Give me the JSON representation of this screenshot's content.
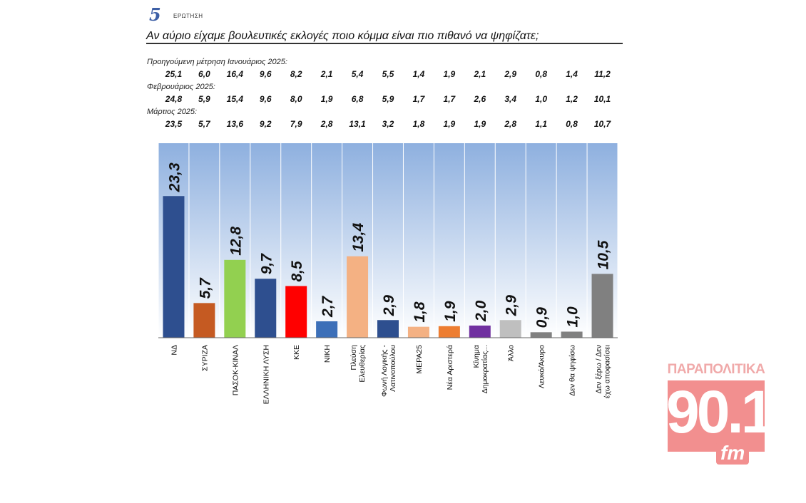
{
  "header": {
    "question_number": "5",
    "question_word": "ΕΡΩΤΗΣΗ",
    "question": "Αν αύριο είχαμε βουλευτικές εκλογές ποιο κόμμα είναι πιο πιθανό να ψηφίζατε;"
  },
  "previous": [
    {
      "label": "Προηγούμενη μέτρηση Ιανουάριος 2025:",
      "values": [
        "25,1",
        "6,0",
        "16,4",
        "9,6",
        "8,2",
        "2,1",
        "5,4",
        "5,5",
        "1,4",
        "1,9",
        "2,1",
        "2,9",
        "0,8",
        "1,4",
        "11,2"
      ]
    },
    {
      "label": "Φεβρουάριος 2025:",
      "values": [
        "24,8",
        "5,9",
        "15,4",
        "9,6",
        "8,0",
        "1,9",
        "6,8",
        "5,9",
        "1,7",
        "1,7",
        "2,6",
        "3,4",
        "1,0",
        "1,2",
        "10,1"
      ]
    },
    {
      "label": "Μάρτιος 2025:",
      "values": [
        "23,5",
        "5,7",
        "13,6",
        "9,2",
        "7,9",
        "2,8",
        "13,1",
        "3,2",
        "1,8",
        "1,9",
        "1,9",
        "2,8",
        "1,1",
        "0,8",
        "10,7"
      ]
    }
  ],
  "chart_data": {
    "type": "bar",
    "title": "",
    "xlabel": "",
    "ylabel": "",
    "ylim": [
      0,
      32
    ],
    "grid": false,
    "background_gradient": [
      "#ffffff",
      "#8eb0df"
    ],
    "categories": [
      [
        "ΝΔ"
      ],
      [
        "ΣΥΡΙΖΑ"
      ],
      [
        "ΠΑΣΟΚ-ΚΙΝΑΛ"
      ],
      [
        "ΕΛΛΗΝΙΚΗ ΛΥΣΗ"
      ],
      [
        "ΚΚΕ"
      ],
      [
        "ΝΙΚΗ"
      ],
      [
        "Πλεύση",
        "Ελευθερίας"
      ],
      [
        "Φωνή Λογικής -",
        "Λατινοπούλου"
      ],
      [
        "ΜΕΡΑ25"
      ],
      [
        "Νέα Αριστερά"
      ],
      [
        "Κίνημα",
        "Δημοκρατίας..."
      ],
      [
        "Άλλο"
      ],
      [
        "Λευκό/Άκυρο"
      ],
      [
        "Δεν θα ψηφίσω"
      ],
      [
        "Δεν ξέρω / Δεν",
        "έχω αποφασίσει"
      ]
    ],
    "values": [
      23.3,
      5.7,
      12.8,
      9.7,
      8.5,
      2.7,
      13.4,
      2.9,
      1.8,
      1.9,
      2.0,
      2.9,
      0.9,
      1.0,
      10.5
    ],
    "value_labels": [
      "23,3",
      "5,7",
      "12,8",
      "9,7",
      "8,5",
      "2,7",
      "13,4",
      "2,9",
      "1,8",
      "1,9",
      "2,0",
      "2,9",
      "0,9",
      "1,0",
      "10,5"
    ],
    "colors": [
      "#2e4f8f",
      "#c55a22",
      "#92d050",
      "#2e4f8f",
      "#ff0000",
      "#3c6fb8",
      "#f4b183",
      "#2e4f8f",
      "#f4b183",
      "#ed7d31",
      "#7030a0",
      "#bfbfbf",
      "#808080",
      "#808080",
      "#808080"
    ]
  },
  "logo": {
    "top_text": "ΠΑΡΑΠΟΛΙΤΙΚΑ",
    "number": "90.1",
    "suffix": "fm",
    "color": "#f28f8f"
  }
}
